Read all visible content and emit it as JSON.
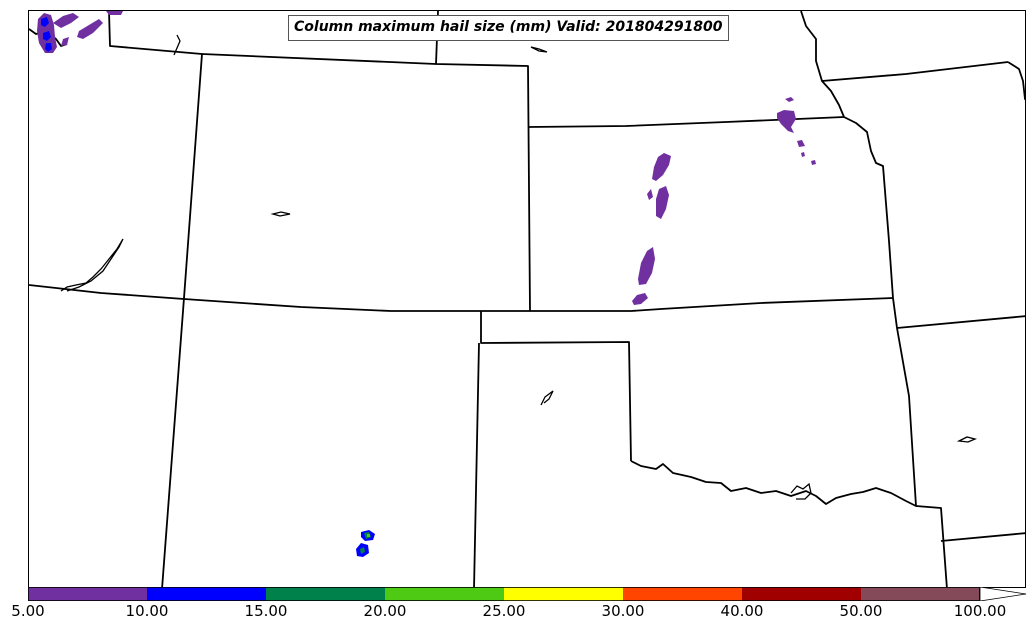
{
  "map": {
    "title": "Column maximum hail size (mm) Valid: 201804291800"
  },
  "colorbar": {
    "bins": [
      {
        "label": "5.00",
        "color": "#7030a0"
      },
      {
        "label": "10.00",
        "color": "#0000ff"
      },
      {
        "label": "15.00",
        "color": "#00804a"
      },
      {
        "label": "20.00",
        "color": "#4ec914"
      },
      {
        "label": "25.00",
        "color": "#ffff00"
      },
      {
        "label": "30.00",
        "color": "#ff4500"
      },
      {
        "label": "40.00",
        "color": "#a00000"
      },
      {
        "label": "50.00",
        "color": "#844a5a"
      },
      {
        "label": "100.00",
        "color": "#ffffff"
      }
    ],
    "extend": "max"
  },
  "hail_colors": {
    "5-10": "#7030a0",
    "10-15": "#0000ff",
    "15-20": "#00804a",
    "20-25": "#4ec914"
  }
}
